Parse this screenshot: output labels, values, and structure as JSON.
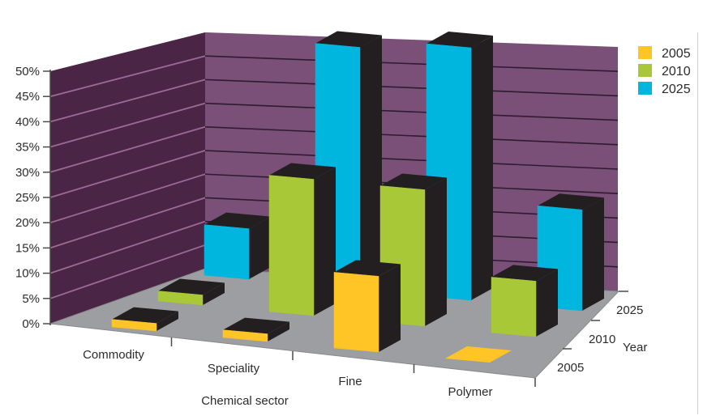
{
  "page": {
    "background": "#FFFFFF",
    "right_border_color": "#CFCFCF"
  },
  "chart_data": {
    "type": "bar",
    "projection": "3d-column",
    "title": "",
    "xlabel": "Chemical sector",
    "depth_label": "Year",
    "categories": [
      "Commodity",
      "Speciality",
      "Fine",
      "Polymer"
    ],
    "depth_categories": [
      "2005",
      "2010",
      "2025"
    ],
    "series": [
      {
        "name": "2005",
        "color": "#FFC425",
        "values": [
          1.5,
          1.5,
          15,
          0.5
        ]
      },
      {
        "name": "2010",
        "color": "#A8C837",
        "values": [
          2,
          27,
          27,
          11
        ]
      },
      {
        "name": "2025",
        "color": "#00B5DE",
        "values": [
          10,
          48,
          50,
          20
        ]
      }
    ],
    "ylim": [
      0,
      50
    ],
    "ytick_step": 5,
    "ytick_suffix": "%",
    "grid": "on",
    "legend_position": "top-right",
    "colors": {
      "left_wall": "#4A2545",
      "left_wall_grid": "#9B6B96",
      "back_wall": "#7B5078",
      "back_wall_grid": "#2E1B30",
      "floor": "#9C9EA1",
      "floor_edge": "#8A8A8A",
      "bar_dark_face": "#231F20",
      "axis_line": "#4A4A4A",
      "text": "#2B2B2B"
    }
  }
}
